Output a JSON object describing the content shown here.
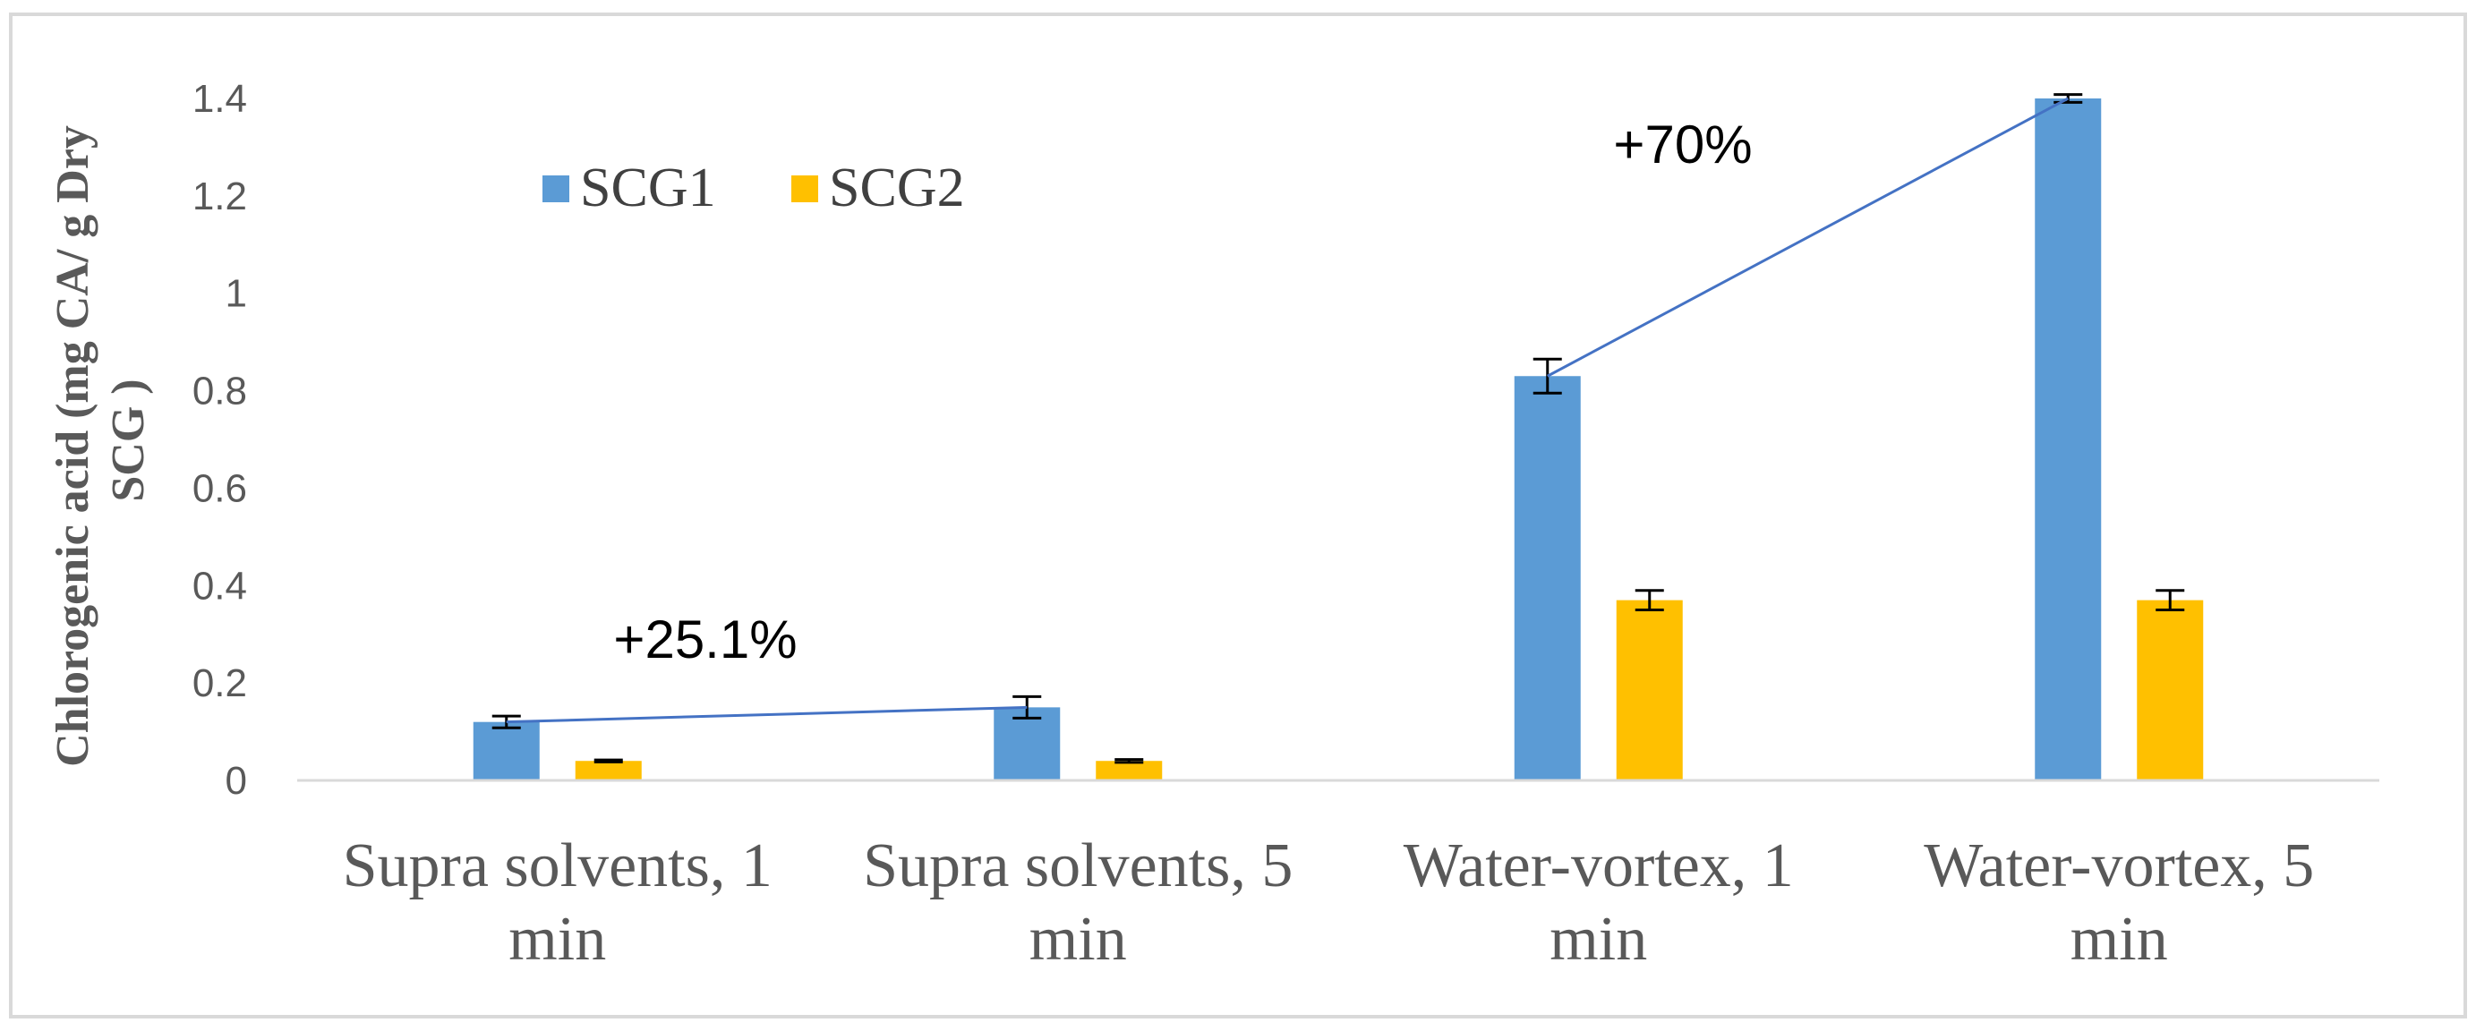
{
  "chart_data": {
    "type": "bar",
    "title": "",
    "xlabel": "",
    "ylabel": "Chlorogenic acid (mg CA/ g Dry SCG )",
    "ylabel_lines": [
      "Chlorogenic acid (mg CA/ g Dry",
      "SCG )"
    ],
    "ylim": [
      0,
      1.4
    ],
    "yticks": [
      0,
      0.2,
      0.4,
      0.6,
      0.8,
      1,
      1.2,
      1.4
    ],
    "ytick_labels": [
      "0",
      "0.2",
      "0.4",
      "0.6",
      "0.8",
      "1",
      "1.2",
      "1.4"
    ],
    "categories": [
      {
        "line1": "Supra solvents, 1",
        "line2": "min"
      },
      {
        "line1": "Supra solvents, 5",
        "line2": "min"
      },
      {
        "line1": "Water-vortex, 1",
        "line2": "min"
      },
      {
        "line1": "Water-vortex, 5",
        "line2": "min"
      }
    ],
    "series": [
      {
        "name": "SCG1",
        "color": "#5b9bd5",
        "values": [
          0.12,
          0.15,
          0.83,
          1.4
        ],
        "errors": [
          0.012,
          0.022,
          0.035,
          0.008
        ]
      },
      {
        "name": "SCG2",
        "color": "#ffc000",
        "values": [
          0.04,
          0.04,
          0.37,
          0.37
        ],
        "errors": [
          0.002,
          0.003,
          0.02,
          0.02
        ]
      }
    ],
    "legend_position": "top-left",
    "annotations": [
      {
        "text": "+25.1%",
        "from_category": 0,
        "to_category": 1,
        "series": "SCG1"
      },
      {
        "text": "+70%",
        "from_category": 2,
        "to_category": 3,
        "series": "SCG1"
      }
    ],
    "trend_line_color": "#4472c4"
  }
}
